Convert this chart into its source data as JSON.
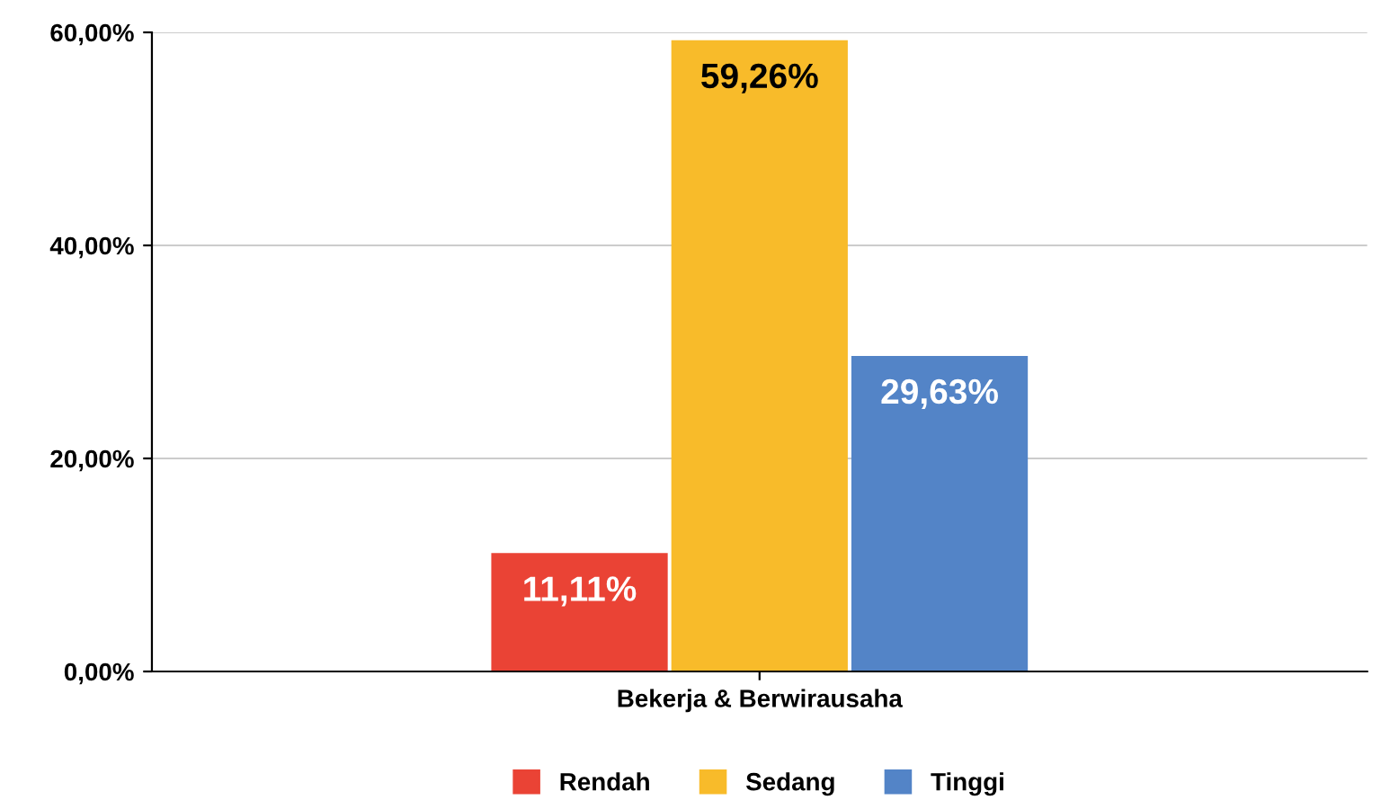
{
  "chart_data": {
    "type": "bar",
    "categories": [
      "Bekerja & Berwirausaha"
    ],
    "series": [
      {
        "name": "Rendah",
        "color": "#ea4335",
        "values": [
          11.11
        ],
        "value_labels": [
          "11,11%"
        ]
      },
      {
        "name": "Sedang",
        "color": "#f8bb2a",
        "values": [
          59.26
        ],
        "value_labels": [
          "59,26%"
        ]
      },
      {
        "name": "Tinggi",
        "color": "#5384c7",
        "values": [
          29.63
        ],
        "value_labels": [
          "29,63%"
        ]
      }
    ],
    "ylim": [
      0,
      60
    ],
    "yticks": [
      {
        "value": 0,
        "label": "0,00%"
      },
      {
        "value": 20,
        "label": "20,00%"
      },
      {
        "value": 40,
        "label": "40,00%"
      },
      {
        "value": 60,
        "label": "60,00%"
      }
    ],
    "grid": "y",
    "legend": "bottom"
  }
}
